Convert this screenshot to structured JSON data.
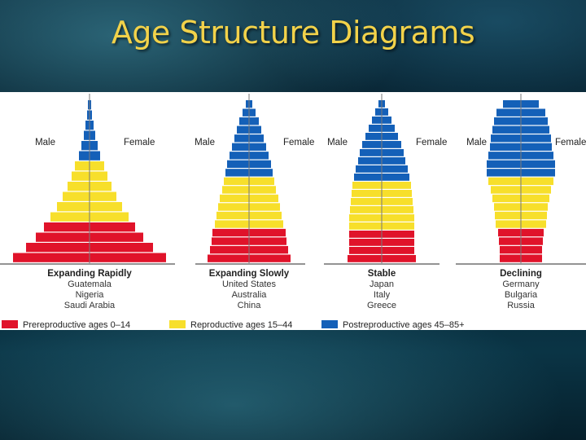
{
  "title": "Age Structure Diagrams",
  "side_labels": {
    "male": "Male",
    "female": "Female"
  },
  "colors": {
    "prereproductive": "#e0132a",
    "reproductive": "#f7df2b",
    "postreproductive": "#1460b8",
    "title_text": "#f2d24a"
  },
  "pyramids": [
    {
      "name": "Expanding Rapidly",
      "countries": [
        "Guatemala",
        "Nigeria",
        "Saudi Arabia"
      ],
      "bars": [
        [
          "post",
          2
        ],
        [
          "post",
          3
        ],
        [
          "post",
          5
        ],
        [
          "post",
          7
        ],
        [
          "post",
          10
        ],
        [
          "post",
          13
        ],
        [
          "repro",
          18
        ],
        [
          "repro",
          22
        ],
        [
          "repro",
          27
        ],
        [
          "repro",
          33
        ],
        [
          "repro",
          40
        ],
        [
          "repro",
          48
        ],
        [
          "pre",
          56
        ],
        [
          "pre",
          66
        ],
        [
          "pre",
          78
        ],
        [
          "pre",
          94
        ]
      ]
    },
    {
      "name": "Expanding Slowly",
      "countries": [
        "United States",
        "Australia",
        "China"
      ],
      "bars": [
        [
          "post",
          4
        ],
        [
          "post",
          8
        ],
        [
          "post",
          12
        ],
        [
          "post",
          15
        ],
        [
          "post",
          18
        ],
        [
          "post",
          21
        ],
        [
          "post",
          24
        ],
        [
          "post",
          27
        ],
        [
          "post",
          29
        ],
        [
          "repro",
          31
        ],
        [
          "repro",
          33
        ],
        [
          "repro",
          36
        ],
        [
          "repro",
          38
        ],
        [
          "repro",
          40
        ],
        [
          "repro",
          42
        ],
        [
          "pre",
          45
        ],
        [
          "pre",
          46
        ],
        [
          "pre",
          48
        ],
        [
          "pre",
          51
        ]
      ]
    },
    {
      "name": "Stable",
      "countries": [
        "Japan",
        "Italy",
        "Greece"
      ],
      "bars": [
        [
          "post",
          4
        ],
        [
          "post",
          8
        ],
        [
          "post",
          12
        ],
        [
          "post",
          16
        ],
        [
          "post",
          20
        ],
        [
          "post",
          24
        ],
        [
          "post",
          27
        ],
        [
          "post",
          29
        ],
        [
          "post",
          32
        ],
        [
          "post",
          34
        ],
        [
          "repro",
          36
        ],
        [
          "repro",
          37
        ],
        [
          "repro",
          38
        ],
        [
          "repro",
          39
        ],
        [
          "repro",
          40
        ],
        [
          "repro",
          40
        ],
        [
          "pre",
          40
        ],
        [
          "pre",
          40
        ],
        [
          "pre",
          40
        ],
        [
          "pre",
          42
        ]
      ]
    },
    {
      "name": "Declining",
      "countries": [
        "Germany",
        "Bulgaria",
        "Russia"
      ],
      "bars": [
        [
          "post",
          22
        ],
        [
          "post",
          30
        ],
        [
          "post",
          33
        ],
        [
          "post",
          35
        ],
        [
          "post",
          37
        ],
        [
          "post",
          38
        ],
        [
          "post",
          40
        ],
        [
          "post",
          42
        ],
        [
          "post",
          42
        ],
        [
          "repro",
          40
        ],
        [
          "repro",
          37
        ],
        [
          "repro",
          35
        ],
        [
          "repro",
          33
        ],
        [
          "repro",
          32
        ],
        [
          "repro",
          31
        ],
        [
          "pre",
          28
        ],
        [
          "pre",
          27
        ],
        [
          "pre",
          26
        ],
        [
          "pre",
          26
        ]
      ]
    }
  ],
  "legend": [
    {
      "key": "pre",
      "label": "Prereproductive ages 0–14"
    },
    {
      "key": "repro",
      "label": "Reproductive ages 15–44"
    },
    {
      "key": "post",
      "label": "Postreproductive ages 45–85+"
    }
  ]
}
